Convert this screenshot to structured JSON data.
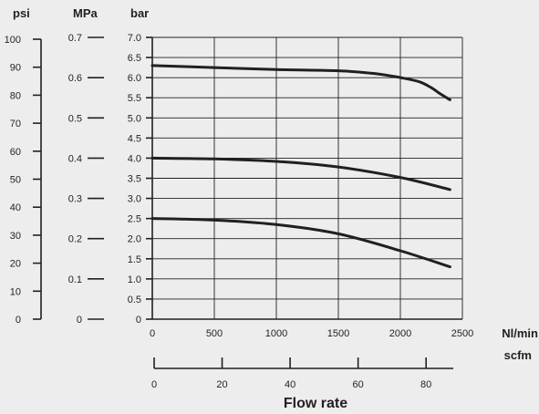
{
  "chart_data": {
    "type": "line",
    "title": "",
    "xlabel": "Flow rate",
    "x_axes": [
      {
        "unit": "Nl/min",
        "range": [
          0,
          2500
        ],
        "ticks": [
          "0",
          "500",
          "1000",
          "1500",
          "2000",
          "2500"
        ]
      },
      {
        "unit": "scfm",
        "range": [
          0,
          88
        ],
        "ticks": [
          "0",
          "20",
          "40",
          "60",
          "80"
        ]
      }
    ],
    "y_axes": [
      {
        "unit": "psi",
        "range": [
          0,
          100
        ],
        "ticks": [
          "0",
          "10",
          "20",
          "30",
          "40",
          "50",
          "60",
          "70",
          "80",
          "90",
          "100"
        ]
      },
      {
        "unit": "MPa",
        "range": [
          0,
          0.7
        ],
        "ticks": [
          "0",
          "0.1",
          "0.2",
          "0.3",
          "0.4",
          "0.5",
          "0.6",
          "0.7"
        ]
      },
      {
        "unit": "bar",
        "range": [
          0,
          7.0
        ],
        "ticks": [
          "0",
          "0.5",
          "1.0",
          "1.5",
          "2.0",
          "2.5",
          "3.0",
          "3.5",
          "4.0",
          "4.5",
          "5.0",
          "5.5",
          "6.0",
          "6.5",
          "7.0"
        ]
      }
    ],
    "grid": true,
    "series": [
      {
        "x": [
          0,
          500,
          1000,
          1500,
          1800,
          2000,
          2150,
          2250,
          2320,
          2400
        ],
        "y": [
          6.3,
          6.25,
          6.2,
          6.17,
          6.1,
          6.0,
          5.9,
          5.75,
          5.6,
          5.45
        ]
      },
      {
        "x": [
          0,
          500,
          1000,
          1500,
          2000,
          2400
        ],
        "y": [
          4.0,
          3.98,
          3.92,
          3.78,
          3.52,
          3.22
        ]
      },
      {
        "x": [
          0,
          500,
          1000,
          1500,
          2000,
          2400
        ],
        "y": [
          2.5,
          2.46,
          2.35,
          2.12,
          1.7,
          1.3
        ]
      }
    ]
  }
}
